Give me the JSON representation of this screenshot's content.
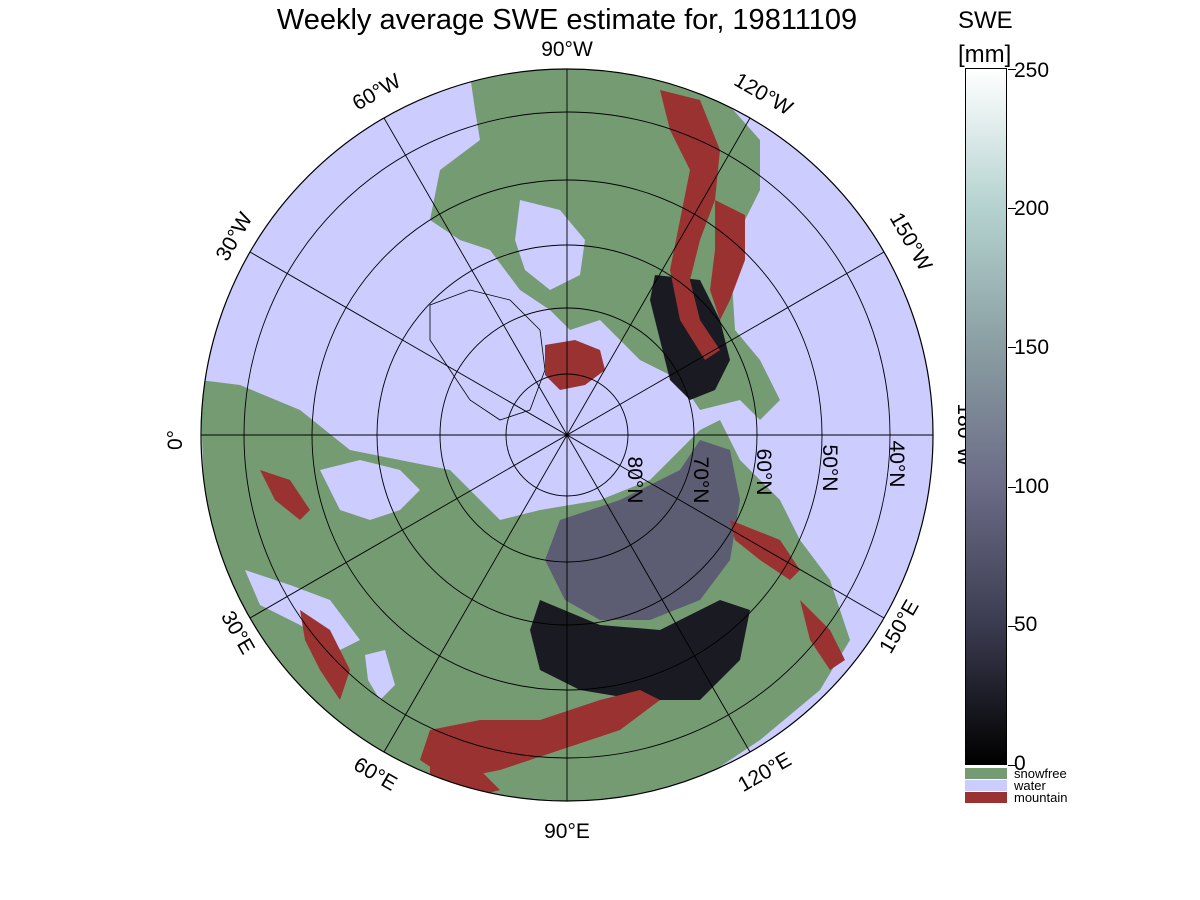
{
  "title": "Weekly average SWE estimate for, 19811109",
  "colorbar": {
    "title_line1": "SWE",
    "title_line2": "[mm]",
    "ticks": [
      "0",
      "50",
      "100",
      "150",
      "200",
      "250"
    ],
    "range": [
      0,
      250
    ],
    "gradient_colors": [
      "#000000",
      "#3b3b50",
      "#6b6b86",
      "#8a9ea2",
      "#b4d2d0",
      "#ffffff"
    ]
  },
  "categories": [
    {
      "label": "snowfree",
      "color": "#759b73"
    },
    {
      "label": "water",
      "color": "#ccccff"
    },
    {
      "label": "mountain",
      "color": "#9b3232"
    }
  ],
  "map": {
    "projection": "north-polar-stereographic",
    "longitude_labels": [
      "90°W",
      "120°W",
      "150°W",
      "180°W",
      "150°E",
      "120°E",
      "90°E",
      "60°E",
      "30°E",
      "0°",
      "30°W",
      "60°W"
    ],
    "latitude_labels": [
      "80°N",
      "70°N",
      "60°N",
      "50°N",
      "40°N"
    ],
    "colors": {
      "water": "#ccccff",
      "snowfree": "#759b73",
      "mountain": "#9b3232",
      "snow_low": "#1a1a22",
      "snow_mid": "#5c5c72"
    }
  }
}
